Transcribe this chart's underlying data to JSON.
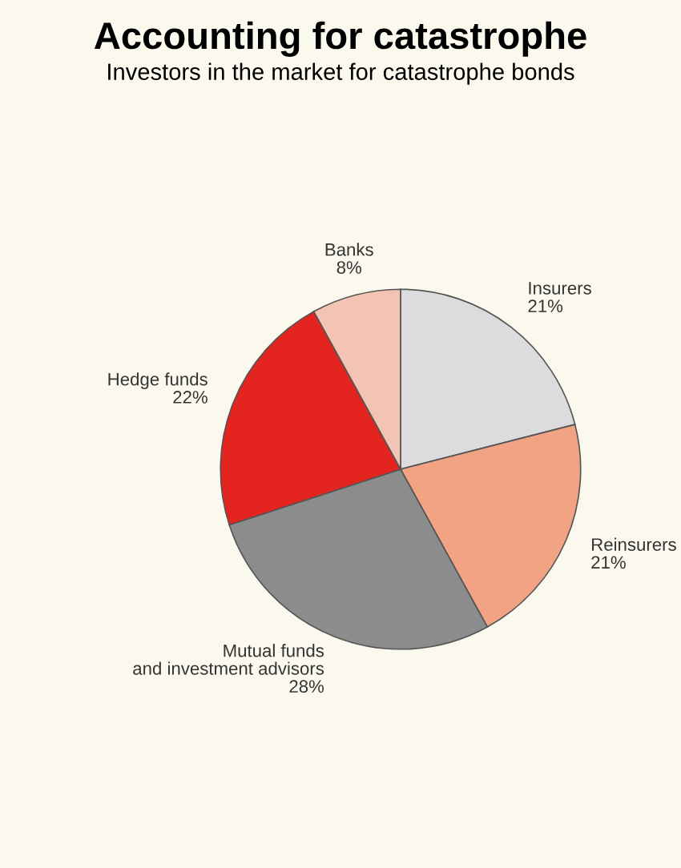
{
  "chart_data": {
    "type": "pie",
    "title": "Accounting for catastrophe",
    "subtitle": "Investors in the market for catastrophe bonds",
    "categories": [
      "Insurers",
      "Reinsurers",
      "Mutual funds\nand investment advisors",
      "Hedge funds",
      "Banks"
    ],
    "values": [
      21,
      21,
      28,
      22,
      8
    ],
    "value_labels": [
      "21%",
      "21%",
      "28%",
      "22%",
      "8%"
    ],
    "colors": [
      "#dcdcdf",
      "#f2a384",
      "#8b8d8d",
      "#e3241f",
      "#f3c3b3"
    ]
  }
}
